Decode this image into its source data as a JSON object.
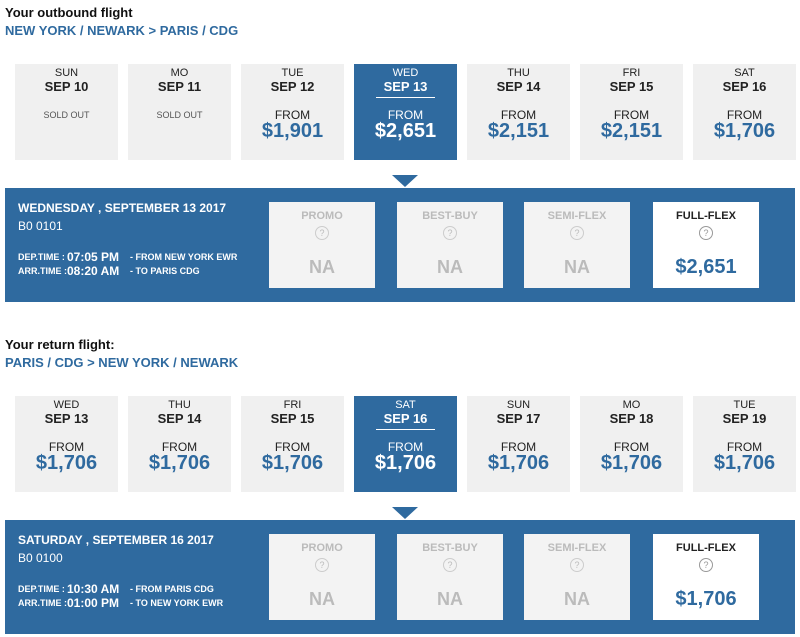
{
  "help_icon": "?",
  "outbound": {
    "heading": "Your outbound flight",
    "route": "NEW YORK / NEWARK > PARIS / CDG",
    "days": [
      {
        "weekday": "SUN",
        "date": "SEP 10",
        "status": "SOLD OUT"
      },
      {
        "weekday": "MO",
        "date": "SEP 11",
        "status": "SOLD OUT"
      },
      {
        "weekday": "TUE",
        "date": "SEP 12",
        "from": "FROM",
        "price": "$1,901"
      },
      {
        "weekday": "WED",
        "date": "SEP 13",
        "from": "FROM",
        "price": "$2,651",
        "selected": true
      },
      {
        "weekday": "THU",
        "date": "SEP 14",
        "from": "FROM",
        "price": "$2,151"
      },
      {
        "weekday": "FRI",
        "date": "SEP 15",
        "from": "FROM",
        "price": "$2,151"
      },
      {
        "weekday": "SAT",
        "date": "SEP 16",
        "from": "FROM",
        "price": "$1,706"
      }
    ],
    "details": {
      "date": "WEDNESDAY , SEPTEMBER 13 2017",
      "flight": "B0 0101",
      "dep_label": "DEP.TIME :",
      "dep_time": "07:05 PM",
      "dep_place": "- FROM NEW YORK EWR",
      "arr_label": "ARR.TIME :",
      "arr_time": "08:20 AM",
      "arr_place": "- TO PARIS CDG"
    },
    "fares": [
      {
        "name": "PROMO",
        "price": "NA"
      },
      {
        "name": "BEST-BUY",
        "price": "NA"
      },
      {
        "name": "SEMI-FLEX",
        "price": "NA"
      },
      {
        "name": "FULL-FLEX",
        "price": "$2,651",
        "selected": true
      }
    ]
  },
  "return": {
    "heading": "Your return flight:",
    "route": "PARIS / CDG > NEW YORK / NEWARK",
    "days": [
      {
        "weekday": "WED",
        "date": "SEP 13",
        "from": "FROM",
        "price": "$1,706"
      },
      {
        "weekday": "THU",
        "date": "SEP 14",
        "from": "FROM",
        "price": "$1,706"
      },
      {
        "weekday": "FRI",
        "date": "SEP 15",
        "from": "FROM",
        "price": "$1,706"
      },
      {
        "weekday": "SAT",
        "date": "SEP 16",
        "from": "FROM",
        "price": "$1,706",
        "selected": true
      },
      {
        "weekday": "SUN",
        "date": "SEP 17",
        "from": "FROM",
        "price": "$1,706"
      },
      {
        "weekday": "MO",
        "date": "SEP 18",
        "from": "FROM",
        "price": "$1,706"
      },
      {
        "weekday": "TUE",
        "date": "SEP 19",
        "from": "FROM",
        "price": "$1,706"
      }
    ],
    "details": {
      "date": "SATURDAY , SEPTEMBER 16 2017",
      "flight": "B0 0100",
      "dep_label": "DEP.TIME :",
      "dep_time": "10:30 AM",
      "dep_place": "- FROM PARIS CDG",
      "arr_label": "ARR.TIME :",
      "arr_time": "01:00 PM",
      "arr_place": "- TO NEW YORK EWR"
    },
    "fares": [
      {
        "name": "PROMO",
        "price": "NA"
      },
      {
        "name": "BEST-BUY",
        "price": "NA"
      },
      {
        "name": "SEMI-FLEX",
        "price": "NA"
      },
      {
        "name": "FULL-FLEX",
        "price": "$1,706",
        "selected": true
      }
    ]
  }
}
